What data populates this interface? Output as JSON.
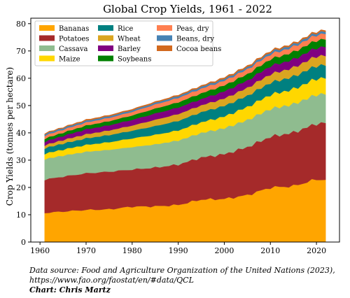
{
  "chart_data": {
    "type": "area",
    "stacked": true,
    "title": "Global Crop Yields, 1961 - 2022",
    "xlabel": "",
    "ylabel": "Crop Yields (tonnes per hectare)",
    "xlim": [
      1958,
      2025
    ],
    "ylim": [
      0,
      82
    ],
    "xticks": [
      1960,
      1970,
      1980,
      1990,
      2000,
      2010,
      2020
    ],
    "yticks": [
      0,
      10,
      20,
      30,
      40,
      50,
      60,
      70,
      80
    ],
    "grid": false,
    "legend": "top-left",
    "x_knots": [
      1961,
      1965,
      1970,
      1975,
      1980,
      1985,
      1990,
      1995,
      2000,
      2005,
      2010,
      2015,
      2020,
      2022
    ],
    "series": [
      {
        "name": "Bananas",
        "color": "#FFA500",
        "values": [
          10.7,
          11.2,
          11.8,
          12.0,
          13.0,
          13.1,
          13.6,
          15.6,
          15.8,
          17.2,
          20.0,
          20.5,
          23.0,
          22.8
        ]
      },
      {
        "name": "Potatoes",
        "color": "#A52A2A",
        "values": [
          12.2,
          12.8,
          13.4,
          13.8,
          13.6,
          14.2,
          14.8,
          15.4,
          16.4,
          17.6,
          18.6,
          19.6,
          20.4,
          20.9
        ]
      },
      {
        "name": "Cassava",
        "color": "#8FBC8F",
        "values": [
          7.5,
          7.7,
          7.9,
          8.0,
          8.2,
          8.5,
          8.8,
          9.0,
          9.5,
          9.9,
          10.2,
          10.4,
          10.6,
          10.7
        ]
      },
      {
        "name": "Maize",
        "color": "#FFD700",
        "values": [
          2.0,
          2.2,
          2.5,
          2.8,
          3.2,
          3.5,
          3.7,
          3.9,
          4.3,
          4.8,
          5.2,
          5.5,
          5.9,
          5.8
        ]
      },
      {
        "name": "Rice",
        "color": "#008080",
        "values": [
          2.0,
          2.2,
          2.4,
          2.6,
          2.8,
          3.2,
          3.5,
          3.7,
          3.9,
          4.1,
          4.4,
          4.6,
          4.7,
          4.7
        ]
      },
      {
        "name": "Wheat",
        "color": "#DAA520",
        "values": [
          1.1,
          1.3,
          1.5,
          1.7,
          1.9,
          2.3,
          2.5,
          2.5,
          2.7,
          2.9,
          3.1,
          3.3,
          3.5,
          3.5
        ]
      },
      {
        "name": "Barley",
        "color": "#800080",
        "values": [
          1.3,
          1.5,
          1.8,
          1.9,
          2.1,
          2.3,
          2.4,
          2.3,
          2.6,
          2.7,
          3.0,
          3.0,
          3.1,
          3.2
        ]
      },
      {
        "name": "Soybeans",
        "color": "#008000",
        "values": [
          1.1,
          1.2,
          1.4,
          1.5,
          1.6,
          1.8,
          1.9,
          2.1,
          2.2,
          2.3,
          2.5,
          2.7,
          2.7,
          2.8
        ]
      },
      {
        "name": "Peas, dry",
        "color": "#FF7F50",
        "values": [
          1.1,
          1.1,
          1.1,
          1.2,
          1.3,
          1.5,
          1.6,
          1.7,
          1.7,
          1.8,
          1.8,
          1.9,
          2.0,
          2.0
        ]
      },
      {
        "name": "Beans, dry",
        "color": "#4682B4",
        "values": [
          0.6,
          0.6,
          0.6,
          0.6,
          0.6,
          0.6,
          0.7,
          0.7,
          0.7,
          0.7,
          0.8,
          0.8,
          0.8,
          0.8
        ]
      },
      {
        "name": "Cocoa beans",
        "color": "#D2691E",
        "values": [
          0.3,
          0.3,
          0.4,
          0.4,
          0.4,
          0.4,
          0.4,
          0.4,
          0.5,
          0.5,
          0.5,
          0.5,
          0.5,
          0.5
        ]
      }
    ]
  },
  "caption": {
    "line1": "Data source: Food and Agriculture Organization of the United Nations (2023),",
    "line2": "https://www.fao.org/faostat/en/#data/QCL",
    "line3": "Chart: Chris Martz"
  }
}
